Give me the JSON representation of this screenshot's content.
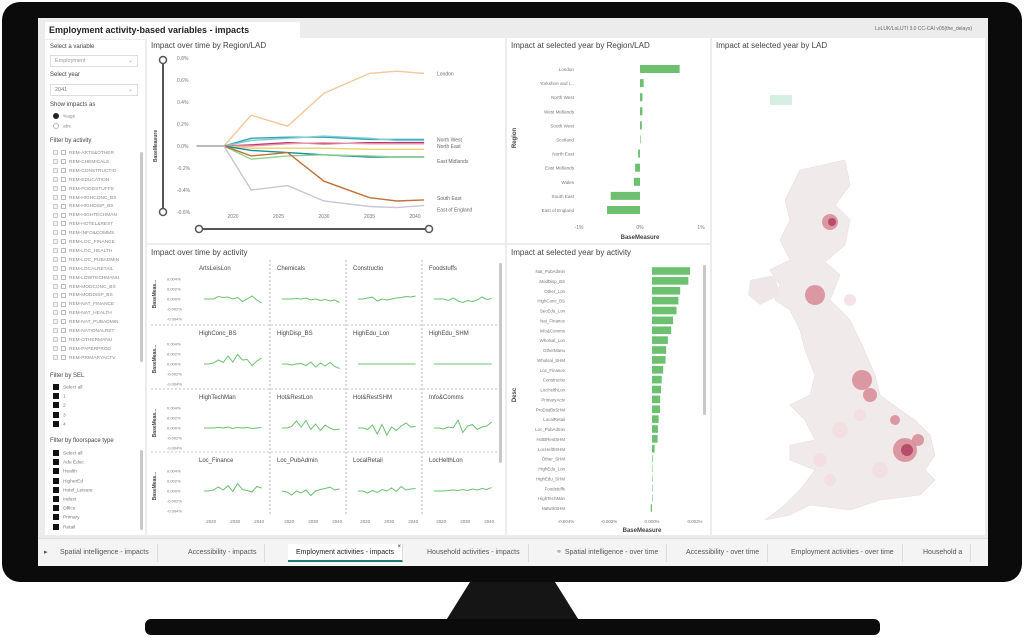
{
  "app": {
    "title": "Employment activity-based variables - impacts",
    "version_text": "LoLUK/LoLUTI 3.0 CC-CAI v05(the_delays)"
  },
  "sidebar": {
    "variable_label": "Select a variable",
    "variable_value": "Employment",
    "year_label": "Select year",
    "year_value": "2041",
    "show_label": "Show impacts as",
    "show_options": [
      {
        "label": "%age",
        "selected": true
      },
      {
        "label": "abs",
        "selected": false
      }
    ],
    "activity_label": "Filter by activity",
    "activities": [
      "REM-ARTS&OTHER",
      "REM-CHEMICALS",
      "REM-CONSTRUCTIO",
      "REM-EDUCATION",
      "REM-FOODSTUFFS",
      "REM-HIGHCONC_BS",
      "REM-HIGHDISP_BS",
      "REM-HIGHTECHMAN",
      "REM-HOTEL&REST",
      "REM-INFO&COMMS",
      "REM-LOC_FINANCE",
      "REM-LOC_HEALTH",
      "REM-LOC_PUBADMIN",
      "REM-LOCALRETAIL",
      "REM-LOWTECHMANU",
      "REM-MODCONC_BS",
      "REM-MODDISP_BS",
      "REM-NAT_FINANCE",
      "REM-NAT_HEALTH",
      "REM-NAT_PUBADMIN",
      "REM-NATIONALRET",
      "REM-OTHERMANU",
      "REM-PAPERPROD",
      "REM-PRIMARYACTV"
    ],
    "sel_label": "Filter by SEL",
    "sel_items": [
      "Select all",
      "1",
      "2",
      "3",
      "4"
    ],
    "floor_label": "Filter by floorspace type",
    "floor_items": [
      "Select all",
      "Adu Educ",
      "Health",
      "HigherEd",
      "Hotel_Leisure",
      "Indust",
      "Office",
      "Primary",
      "Retail"
    ]
  },
  "tabs": [
    {
      "label": "Spatial intelligence - impacts"
    },
    {
      "label": "Accessibility - impacts"
    },
    {
      "label": "Employment activities - impacts",
      "active": true
    },
    {
      "label": "Household activities - impacts"
    },
    {
      "label": "Spatial intelligence - over time",
      "icon": "link-icon"
    },
    {
      "label": "Accessibility - over time"
    },
    {
      "label": "Employment activities - over time"
    },
    {
      "label": "Household a"
    }
  ],
  "colors": {
    "bar": "#6cc070",
    "accent": "#1a7a6e",
    "map_high": "#b04060",
    "map_mid": "#d88a95",
    "map_low": "#f3dde0"
  },
  "chart_data": [
    {
      "id": "line",
      "type": "line",
      "title": "Impact over time by Region/LAD",
      "ylabel": "BaseMeasure",
      "ylim": [
        -0.6,
        0.8
      ],
      "yticks": [
        "0.8%",
        "0.6%",
        "0.4%",
        "0.2%",
        "0.0%",
        "-0.2%",
        "-0.4%",
        "-0.6%"
      ],
      "xticks": [
        "2020",
        "2025",
        "2030",
        "2035",
        "2040"
      ],
      "x": [
        2016,
        2019,
        2022,
        2026,
        2030,
        2035,
        2038,
        2041
      ],
      "series": [
        {
          "name": "London",
          "color": "#f5c79a",
          "values": [
            0,
            0,
            0.28,
            0.18,
            0.48,
            0.66,
            0.68,
            0.66
          ]
        },
        {
          "color": "#2ba6b5",
          "values": [
            0,
            0,
            0.07,
            0.08,
            0.08,
            0.06,
            0.06,
            0.06
          ]
        },
        {
          "name": "North West",
          "color": "#7fcbd3",
          "values": [
            0,
            0,
            0.05,
            0.07,
            0.09,
            0.07,
            0.05,
            0.05
          ]
        },
        {
          "color": "#c0306a",
          "values": [
            0,
            0,
            0.01,
            0.03,
            0.02,
            0.03,
            0.03,
            0.03
          ]
        },
        {
          "name": "North East",
          "color": "#e69ab0",
          "values": [
            0,
            0,
            0.0,
            0.02,
            0.03,
            0.02,
            0.02,
            0.02
          ]
        },
        {
          "color": "#e8d46a",
          "values": [
            0,
            0,
            -0.02,
            -0.02,
            -0.02,
            -0.03,
            -0.03,
            -0.03
          ]
        },
        {
          "name": "East Midlands",
          "color": "#1b8c9a",
          "values": [
            0,
            0,
            -0.04,
            -0.06,
            -0.08,
            -0.1,
            -0.1,
            -0.1
          ]
        },
        {
          "color": "#8fd18f",
          "values": [
            0,
            0,
            -0.12,
            -0.09,
            -0.08,
            -0.09,
            -0.1,
            -0.1
          ]
        },
        {
          "name": "South East",
          "color": "#c0703a",
          "values": [
            0,
            0,
            -0.09,
            -0.06,
            -0.32,
            -0.47,
            -0.5,
            -0.49
          ]
        },
        {
          "name": "East of England",
          "color": "#c9c4d6",
          "values": [
            0,
            0,
            -0.4,
            -0.36,
            -0.5,
            -0.55,
            -0.56,
            -0.54
          ]
        }
      ]
    },
    {
      "id": "region",
      "type": "bar",
      "title": "Impact at selected year by Region/LAD",
      "xlabel": "BaseMeasure",
      "ylabel": "Region",
      "xlim": [
        -1,
        1
      ],
      "xticks": [
        "-1%",
        "0%",
        "1%"
      ],
      "categories": [
        "London",
        "Yorkshire and t...",
        "North West",
        "West Midlands",
        "South West",
        "Scotland",
        "North East",
        "East Midlands",
        "Wales",
        "South East",
        "East of England"
      ],
      "values": [
        0.65,
        0.06,
        0.04,
        0.04,
        0.03,
        0.01,
        -0.03,
        -0.08,
        -0.1,
        -0.48,
        -0.54
      ]
    },
    {
      "id": "activity",
      "type": "bar",
      "title": "Impact at selected year by activity",
      "xlabel": "BaseMeasure",
      "ylabel": "Desc",
      "xlim": [
        -0.0048,
        0.0024
      ],
      "xticks": [
        "-0.004%",
        "-0.002%",
        "0.000%",
        "0.002%"
      ],
      "categories": [
        "Nat_PubAdmin",
        "ModDisp_BS",
        "Other_Lon",
        "HighConc_BS",
        "SecEdu_Lon",
        "Nat_Finance",
        "Info&Comms",
        "Wholsal_Lon",
        "OtherManu",
        "Wholsal_SHM",
        "Loc_Finance",
        "Constructio",
        "LocHelthLon",
        "PrimaryActv",
        "ProDistBsSHM",
        "LocalRetail",
        "Loc_PubAdmin",
        "HotBRestSHM",
        "LocHelthSHM",
        "Other_SHM",
        "HighEdu_Lon",
        "HighEdu_SHM",
        "Foodstuffs",
        "HighTechMan",
        "NatwrkSHM"
      ],
      "values": [
        0.00177,
        0.00169,
        0.00131,
        0.00123,
        0.00114,
        0.00098,
        0.00089,
        0.00074,
        0.00066,
        0.00063,
        0.00052,
        0.00045,
        0.00042,
        0.00038,
        0.00037,
        0.00031,
        0.00028,
        0.00026,
        0.00012,
        3e-05,
        0,
        0,
        2e-05,
        1e-05,
        -6e-05
      ]
    },
    {
      "id": "multiples",
      "type": "line",
      "title": "Impact over time by activity",
      "ylabel": "BaseMeas...",
      "ylim": [
        -0.004,
        0.004
      ],
      "yticks": [
        "0.004%",
        "0.002%",
        "0.000%",
        "-0.002%",
        "-0.004%"
      ],
      "xticks": [
        "2020",
        "2030",
        "2040"
      ],
      "x": [
        2017,
        2019,
        2021,
        2023,
        2025,
        2027,
        2029,
        2031,
        2033,
        2035,
        2037,
        2039,
        2041
      ],
      "panels": [
        {
          "name": "ArtsLeisLon",
          "values": [
            0,
            0,
            0,
            0.0005,
            0.0003,
            0.0004,
            0,
            0.0003,
            -0.0005,
            0,
            0.0006,
            -0.0002,
            -0.0008
          ]
        },
        {
          "name": "Chemicals",
          "values": [
            0,
            0,
            0,
            0.0001,
            0,
            0.0002,
            -0.0002,
            0,
            -0.0003,
            -0.0001,
            -0.0004,
            -0.0002,
            -0.0007
          ]
        },
        {
          "name": "Constructio",
          "values": [
            0,
            0,
            0.0002,
            0.0004,
            -0.0004,
            0,
            -0.0002,
            0,
            0.0002,
            0.0003,
            0.0005,
            0.0004,
            0.0006
          ]
        },
        {
          "name": "Foodstuffs",
          "values": [
            0,
            0,
            0,
            -0.0003,
            0.0002,
            -0.0004,
            -0.0007,
            -0.0003,
            -0.0005,
            -0.0002,
            0.0004,
            -0.0001,
            0.0001
          ]
        },
        {
          "name": "HighConc_BS",
          "values": [
            0,
            0,
            0.0002,
            0.0008,
            0.0003,
            0.0016,
            0.0004,
            0.0019,
            0.0008,
            0.0009,
            -0.0003,
            0.0006,
            0.0012
          ]
        },
        {
          "name": "HighDisp_BS",
          "values": [
            0,
            0,
            -0.0002,
            0,
            0.0001,
            -0.0003,
            0.0004,
            -0.0006,
            0.0002,
            -0.0004,
            0.0003,
            -0.0005,
            -0.0009
          ]
        },
        {
          "name": "HighEdu_Lon",
          "values": [
            0,
            0,
            0,
            0,
            0,
            0,
            0,
            0,
            0,
            0,
            0,
            0,
            0
          ]
        },
        {
          "name": "HighEdu_SHM",
          "values": [
            0,
            0,
            0,
            0,
            0,
            0,
            0,
            0,
            0,
            0,
            0,
            0,
            0
          ]
        },
        {
          "name": "HighTechMan",
          "values": [
            0,
            0,
            0,
            0.0001,
            0,
            0.0002,
            -0.0001,
            0.0001,
            0,
            0.0001,
            -0.0001,
            0,
            0.0001
          ]
        },
        {
          "name": "Hot&RestLon",
          "values": [
            0,
            0,
            0.0003,
            0.0014,
            0.0002,
            0.0015,
            -0.0003,
            0.0008,
            -0.0005,
            0.0006,
            0,
            -0.0004,
            -0.0002
          ]
        },
        {
          "name": "Hot&RestSHM",
          "values": [
            0,
            0,
            -0.0003,
            0.0006,
            -0.0012,
            0.0007,
            -0.0014,
            0.0002,
            -0.0005,
            0.0004,
            0.001,
            0.0002,
            0.0003
          ]
        },
        {
          "name": "Info&Comms",
          "values": [
            0,
            0,
            -0.0002,
            0.0002,
            0,
            0.0016,
            -0.0009,
            0.0004,
            0.0007,
            -0.0003,
            0.0002,
            0.0004,
            0.0012
          ]
        },
        {
          "name": "Loc_Finance",
          "values": [
            0,
            0,
            0.0002,
            0.0008,
            0.0002,
            0.0011,
            -0.0001,
            0.0015,
            0.0003,
            0.0001,
            -0.0002,
            0.0009,
            0.0006
          ]
        },
        {
          "name": "Loc_PubAdmin",
          "values": [
            0,
            -0.0002,
            -0.0008,
            0,
            -0.0004,
            0.0002,
            -0.0009,
            0,
            0.0003,
            0.0005,
            0.0008,
            0.0002,
            0.0004
          ]
        },
        {
          "name": "LocalRetail",
          "values": [
            0,
            0,
            -0.0004,
            0.0001,
            -0.0003,
            0.0003,
            0,
            0.0006,
            -0.0001,
            0.0009,
            0.0002,
            0.0004,
            0.0005
          ]
        },
        {
          "name": "LocHelthLon",
          "values": [
            0,
            0,
            0,
            0.0001,
            0.0002,
            0.0001,
            0.0003,
            0.0001,
            0.0004,
            0.0002,
            0.0005,
            0.0003,
            0.0007
          ]
        }
      ]
    },
    {
      "id": "map",
      "type": "map",
      "title": "Impact at selected year by LAD"
    }
  ]
}
